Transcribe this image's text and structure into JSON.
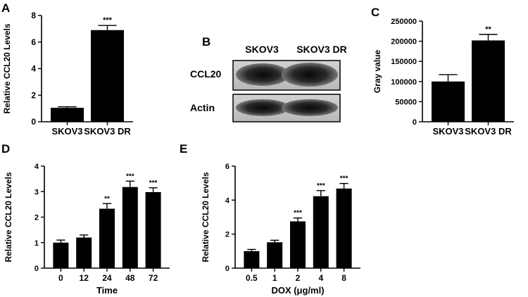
{
  "panel_labels": {
    "A": "A",
    "B": "B",
    "C": "C",
    "D": "D",
    "E": "E"
  },
  "blot": {
    "columns": [
      "SKOV3",
      "SKOV3 DR"
    ],
    "rows": [
      "CCL20",
      "Actin"
    ]
  },
  "chart_data": [
    {
      "panel": "A",
      "type": "bar",
      "categories": [
        "SKOV3",
        "SKOV3 DR"
      ],
      "values": [
        1.05,
        6.9
      ],
      "errors": [
        0.08,
        0.35
      ],
      "significance": [
        "",
        "***"
      ],
      "ylabel": "Relative CCL20 Levels",
      "xlabel": "",
      "ylim": [
        0,
        8
      ],
      "yticks": [
        0,
        2,
        4,
        6,
        8
      ]
    },
    {
      "panel": "C",
      "type": "bar",
      "categories": [
        "SKOV3",
        "SKOV3 DR"
      ],
      "values": [
        100000,
        202000
      ],
      "errors": [
        17000,
        15000
      ],
      "significance": [
        "",
        "**"
      ],
      "ylabel": "Gray value",
      "xlabel": "",
      "ylim": [
        0,
        250000
      ],
      "yticks": [
        0,
        50000,
        100000,
        150000,
        200000,
        250000
      ]
    },
    {
      "panel": "D",
      "type": "bar",
      "categories": [
        "0",
        "12",
        "24",
        "48",
        "72"
      ],
      "values": [
        1.0,
        1.2,
        2.33,
        3.18,
        2.98
      ],
      "errors": [
        0.1,
        0.1,
        0.2,
        0.23,
        0.17
      ],
      "significance": [
        "",
        "",
        "**",
        "***",
        "***"
      ],
      "ylabel": "Relative CCL20 Levels",
      "xlabel": "Time",
      "ylim": [
        0,
        4
      ],
      "yticks": [
        0,
        1,
        2,
        3,
        4
      ]
    },
    {
      "panel": "E",
      "type": "bar",
      "categories": [
        "0.5",
        "1",
        "2",
        "4",
        "8"
      ],
      "values": [
        1.0,
        1.52,
        2.75,
        4.23,
        4.68
      ],
      "errors": [
        0.1,
        0.12,
        0.2,
        0.33,
        0.3
      ],
      "significance": [
        "",
        "",
        "***",
        "***",
        "***"
      ],
      "ylabel": "Relative CCL20 Levels",
      "xlabel": "DOX (μg/ml)",
      "ylim": [
        0,
        6
      ],
      "yticks": [
        0,
        2,
        4,
        6
      ]
    }
  ]
}
